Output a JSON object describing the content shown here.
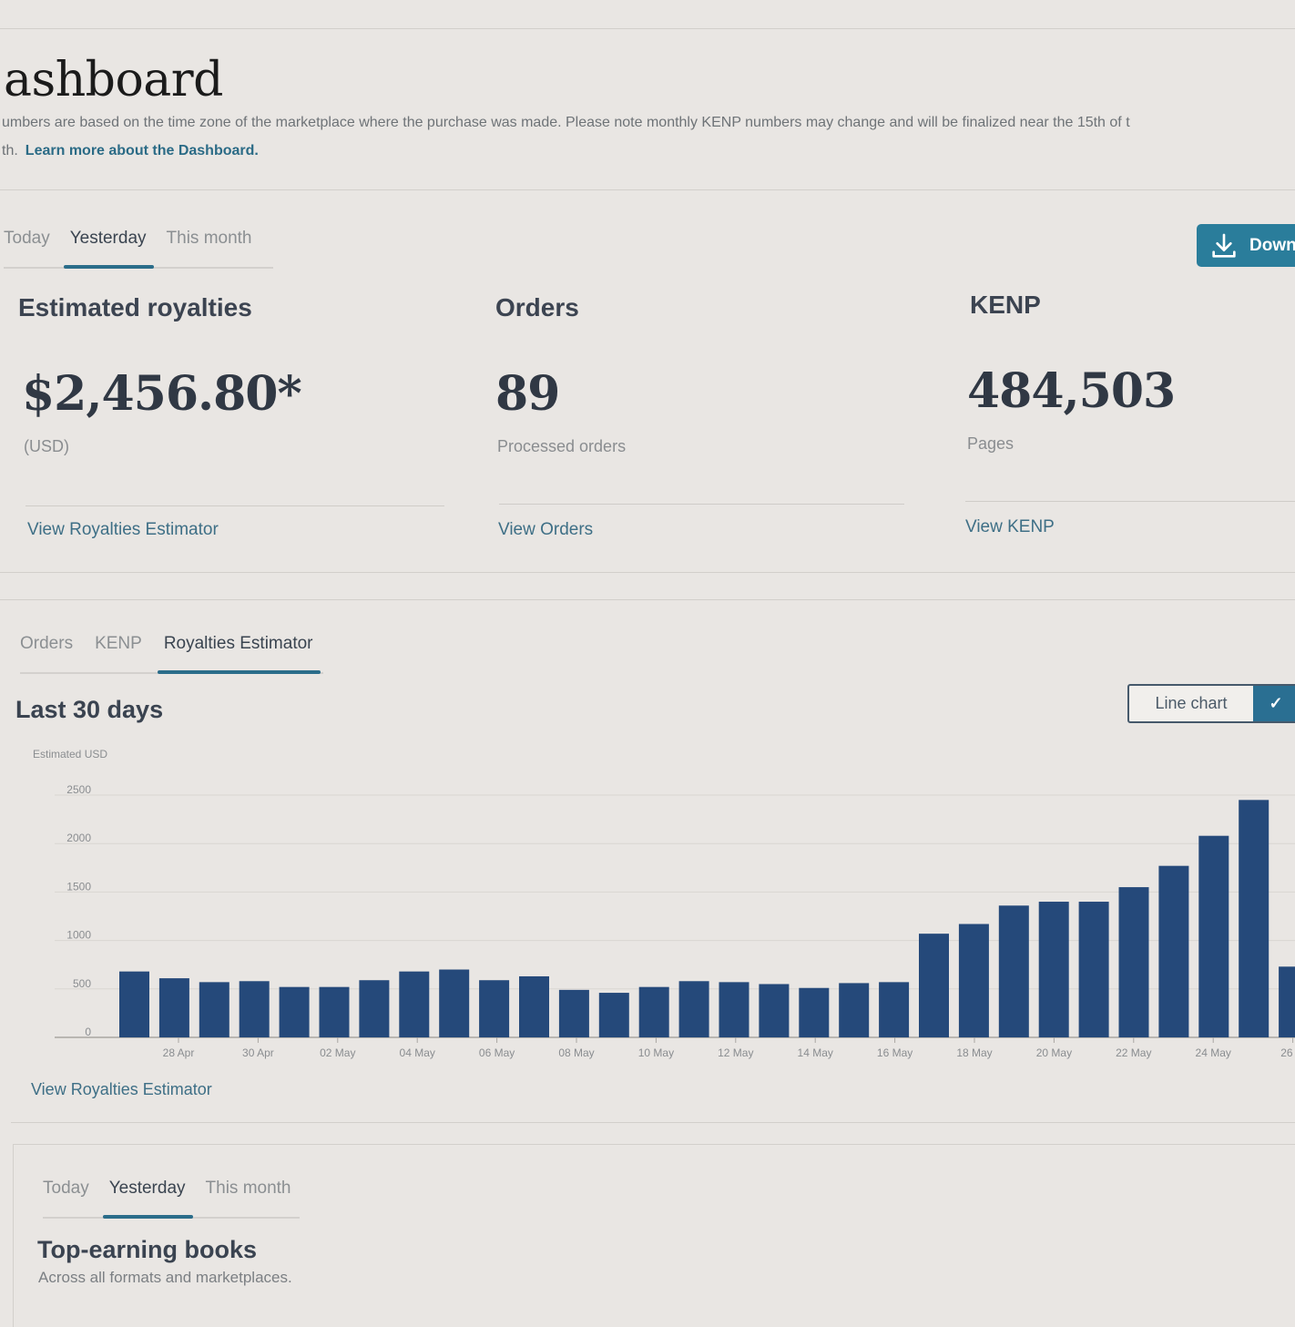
{
  "header": {
    "title": "ashboard",
    "description_line1": "umbers are based on the time zone of the marketplace where the purchase was made. Please note monthly KENP numbers may change and will be finalized near the 15th of t",
    "description_line2_prefix": "th.",
    "learn_more_link": "Learn more about the Dashboard."
  },
  "period_tabs": [
    "Today",
    "Yesterday",
    "This month"
  ],
  "download_label": "Down",
  "metrics": {
    "royalties": {
      "heading": "Estimated royalties",
      "value": "$2,456.80*",
      "sub": "(USD)",
      "link": "View Royalties Estimator"
    },
    "orders": {
      "heading": "Orders",
      "value": "89",
      "sub": "Processed orders",
      "link": "View Orders"
    },
    "kenp": {
      "heading": "KENP",
      "value": "484,503",
      "sub": "Pages",
      "link": "View KENP"
    }
  },
  "chart_tabs": [
    "Orders",
    "KENP",
    "Royalties Estimator"
  ],
  "chart_section": {
    "title": "Last 30 days",
    "chart_type_button": "Line chart",
    "link": "View Royalties Estimator"
  },
  "chart_data": {
    "type": "bar",
    "ylabel": "Estimated USD",
    "ylim": [
      0,
      2500
    ],
    "yticks": [
      0,
      500,
      1000,
      1500,
      2000,
      2500
    ],
    "grid": true,
    "color": "#25497a",
    "x_ticks": [
      "28 Apr",
      "30 Apr",
      "02 May",
      "04 May",
      "06 May",
      "08 May",
      "10 May",
      "12 May",
      "14 May",
      "16 May",
      "18 May",
      "20 May",
      "22 May",
      "24 May",
      "26 M"
    ],
    "categories": [
      "27 Apr",
      "28 Apr",
      "29 Apr",
      "30 Apr",
      "01 May",
      "02 May",
      "03 May",
      "04 May",
      "05 May",
      "06 May",
      "07 May",
      "08 May",
      "09 May",
      "10 May",
      "11 May",
      "12 May",
      "13 May",
      "14 May",
      "15 May",
      "16 May",
      "17 May",
      "18 May",
      "19 May",
      "20 May",
      "21 May",
      "22 May",
      "23 May",
      "24 May",
      "25 May",
      "26 May"
    ],
    "values": [
      680,
      610,
      570,
      580,
      520,
      520,
      590,
      680,
      700,
      590,
      630,
      490,
      460,
      520,
      580,
      570,
      550,
      510,
      560,
      570,
      1070,
      1170,
      1360,
      1400,
      1400,
      1550,
      1770,
      2080,
      2450,
      730
    ]
  },
  "books_section": {
    "tabs": [
      "Today",
      "Yesterday",
      "This month"
    ],
    "title": "Top-earning books",
    "subtitle": "Across all formats and marketplaces."
  }
}
